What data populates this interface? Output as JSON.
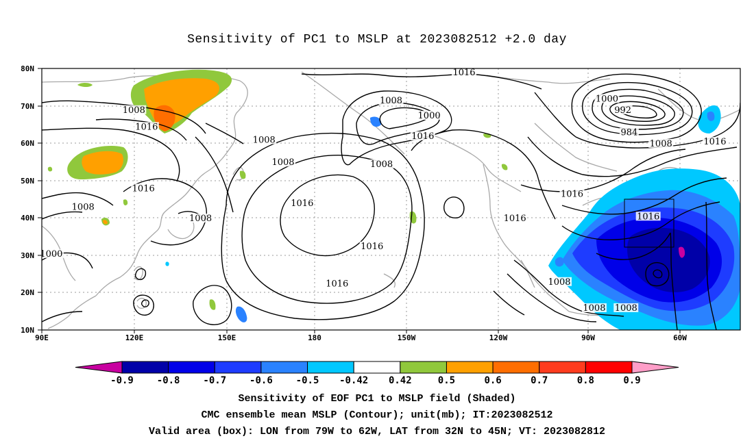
{
  "title": "Sensitivity of PC1 to MSLP at 2023082512 +2.0 day",
  "map": {
    "lon_labels": [
      "90E",
      "120E",
      "150E",
      "180",
      "150W",
      "120W",
      "90W",
      "60W"
    ],
    "lat_labels": [
      "80N",
      "70N",
      "60N",
      "50N",
      "40N",
      "30N",
      "20N",
      "10N"
    ],
    "contour_labels": [
      {
        "text": "1016",
        "lon": -137,
        "lat": 78.5
      },
      {
        "text": "1008",
        "lon": -160,
        "lat": 71
      },
      {
        "text": "1000",
        "lon": -148,
        "lat": 67
      },
      {
        "text": "1016",
        "lon": -150,
        "lat": 61.5
      },
      {
        "text": "1008",
        "lon": -163,
        "lat": 54
      },
      {
        "text": "1008",
        "lon": 119,
        "lat": 68.5
      },
      {
        "text": "1016",
        "lon": 123,
        "lat": 64
      },
      {
        "text": "1008",
        "lon": 160,
        "lat": 60.5
      },
      {
        "text": "1008",
        "lon": 166,
        "lat": 54.5
      },
      {
        "text": "1016",
        "lon": 122,
        "lat": 47.5
      },
      {
        "text": "1008",
        "lon": 103,
        "lat": 42.5
      },
      {
        "text": "1008",
        "lon": 140,
        "lat": 39.5
      },
      {
        "text": "1016",
        "lon": 172,
        "lat": 43.5
      },
      {
        "text": "1016",
        "lon": -166,
        "lat": 32
      },
      {
        "text": "1016",
        "lon": -177,
        "lat": 22
      },
      {
        "text": "1016",
        "lon": -121,
        "lat": 39.5
      },
      {
        "text": "1016",
        "lon": -103,
        "lat": 46
      },
      {
        "text": "1000",
        "lon": -92,
        "lat": 71.5
      },
      {
        "text": "992",
        "lon": -87,
        "lat": 68.5
      },
      {
        "text": "984",
        "lon": -85,
        "lat": 62.5
      },
      {
        "text": "1008",
        "lon": -75,
        "lat": 59.5
      },
      {
        "text": "1016",
        "lon": -58,
        "lat": 60
      },
      {
        "text": "1016",
        "lon": -79,
        "lat": 40
      },
      {
        "text": "1000",
        "lon": 93,
        "lat": 30
      },
      {
        "text": "1008",
        "lon": -107,
        "lat": 22.5
      },
      {
        "text": "1008",
        "lon": -96,
        "lat": 15.5
      },
      {
        "text": "1008",
        "lon": -86,
        "lat": 15.5
      }
    ]
  },
  "colorbar": {
    "labels": [
      "-0.9",
      "-0.8",
      "-0.7",
      "-0.6",
      "-0.5",
      "-0.42",
      "0.42",
      "0.5",
      "0.6",
      "0.7",
      "0.8",
      "0.9"
    ],
    "colors": [
      "#0000a8",
      "#0000e8",
      "#1e3cff",
      "#2a82ff",
      "#00c8ff",
      "#ffffff",
      "#90c83c",
      "#ffa000",
      "#ff6e00",
      "#ff3c1e",
      "#ff0000"
    ],
    "end_low": "#c800a0",
    "end_high": "#ff9ec8"
  },
  "captions": {
    "line1": "Sensitivity of EOF PC1 to MSLP field (Shaded)",
    "line2": "CMC ensemble mean MSLP (Contour); unit(mb); IT:2023082512",
    "line3": "Valid area (box): LON from 79W to 62W, LAT from 32N to 45N; VT: 2023082812"
  }
}
